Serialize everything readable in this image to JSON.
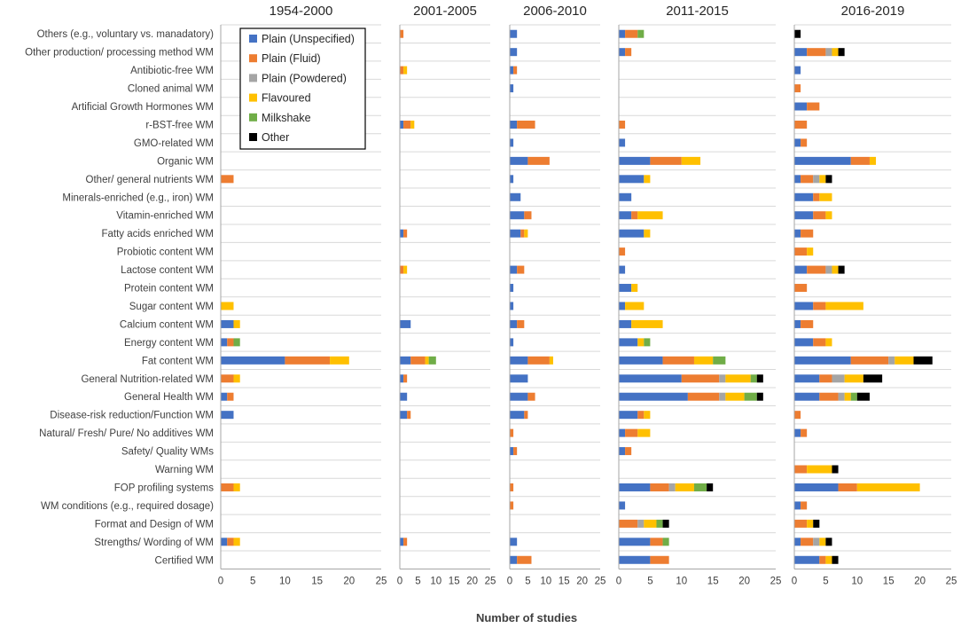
{
  "chart_data": {
    "type": "bar",
    "orientation": "horizontal",
    "stacked": true,
    "xlabel": "Number of studies",
    "xlim": [
      0,
      25
    ],
    "xticks": [
      0,
      5,
      10,
      15,
      20,
      25
    ],
    "legend_position": "top-left",
    "categories": [
      "Others (e.g., voluntary vs. manadatory)",
      "Other production/ processing method WM",
      "Antibiotic-free WM",
      "Cloned animal WM",
      "Artificial Growth Hormones WM",
      "r-BST-free WM",
      "GMO-related WM",
      "Organic WM",
      "Other/ general nutrients WM",
      "Minerals-enriched (e.g., iron) WM",
      "Vitamin-enriched WM",
      "Fatty acids enriched WM",
      "Probiotic content WM",
      "Lactose content WM",
      "Protein content WM",
      "Sugar content WM",
      "Calcium content WM",
      "Energy content WM",
      "Fat content WM",
      "General Nutrition-related WM",
      "General Health WM",
      "Disease-risk reduction/Function WM",
      "Natural/ Fresh/ Pure/ No additives WM",
      "Safety/ Quality WMs",
      "Warning WM",
      "FOP profiling systems",
      "WM conditions (e.g., required dosage)",
      "Format and Design of WM",
      "Strengths/ Wording of WM",
      "Certified WM"
    ],
    "series_names": [
      "Plain (Unspecified)",
      "Plain (Fluid)",
      "Plain (Powdered)",
      "Flavoured",
      "Milkshake",
      "Other"
    ],
    "series_colors": [
      "#4472c4",
      "#ed7d31",
      "#a5a5a5",
      "#ffc000",
      "#70ad47",
      "#000000"
    ],
    "panels": [
      {
        "title": "1954-2000",
        "values": [
          [
            0,
            0,
            0,
            0,
            0,
            0
          ],
          [
            0,
            0,
            0,
            0,
            0,
            0
          ],
          [
            0,
            0,
            0,
            0,
            0,
            0
          ],
          [
            0,
            0,
            0,
            0,
            0,
            0
          ],
          [
            0,
            0,
            0,
            0,
            0,
            0
          ],
          [
            0,
            0,
            0,
            0,
            0,
            0
          ],
          [
            0,
            0,
            0,
            0,
            0,
            0
          ],
          [
            0,
            0,
            0,
            0,
            0,
            0
          ],
          [
            0,
            2,
            0,
            0,
            0,
            0
          ],
          [
            0,
            0,
            0,
            0,
            0,
            0
          ],
          [
            0,
            0,
            0,
            0,
            0,
            0
          ],
          [
            0,
            0,
            0,
            0,
            0,
            0
          ],
          [
            0,
            0,
            0,
            0,
            0,
            0
          ],
          [
            0,
            0,
            0,
            0,
            0,
            0
          ],
          [
            0,
            0,
            0,
            0,
            0,
            0
          ],
          [
            0,
            0,
            0,
            2,
            0,
            0
          ],
          [
            2,
            0,
            0,
            1,
            0,
            0
          ],
          [
            1,
            1,
            0,
            0,
            1,
            0
          ],
          [
            10,
            7,
            0,
            3,
            0,
            0
          ],
          [
            0,
            2,
            0,
            1,
            0,
            0
          ],
          [
            1,
            1,
            0,
            0,
            0,
            0
          ],
          [
            2,
            0,
            0,
            0,
            0,
            0
          ],
          [
            0,
            0,
            0,
            0,
            0,
            0
          ],
          [
            0,
            0,
            0,
            0,
            0,
            0
          ],
          [
            0,
            0,
            0,
            0,
            0,
            0
          ],
          [
            0,
            2,
            0,
            1,
            0,
            0
          ],
          [
            0,
            0,
            0,
            0,
            0,
            0
          ],
          [
            0,
            0,
            0,
            0,
            0,
            0
          ],
          [
            1,
            1,
            0,
            1,
            0,
            0
          ],
          [
            0,
            0,
            0,
            0,
            0,
            0
          ]
        ]
      },
      {
        "title": "2001-2005",
        "values": [
          [
            0,
            1,
            0,
            0,
            0,
            0
          ],
          [
            0,
            0,
            0,
            0,
            0,
            0
          ],
          [
            0,
            1,
            0,
            1,
            0,
            0
          ],
          [
            0,
            0,
            0,
            0,
            0,
            0
          ],
          [
            0,
            0,
            0,
            0,
            0,
            0
          ],
          [
            1,
            2,
            0,
            1,
            0,
            0
          ],
          [
            0,
            0,
            0,
            0,
            0,
            0
          ],
          [
            0,
            0,
            0,
            0,
            0,
            0
          ],
          [
            0,
            0,
            0,
            0,
            0,
            0
          ],
          [
            0,
            0,
            0,
            0,
            0,
            0
          ],
          [
            0,
            0,
            0,
            0,
            0,
            0
          ],
          [
            1,
            1,
            0,
            0,
            0,
            0
          ],
          [
            0,
            0,
            0,
            0,
            0,
            0
          ],
          [
            0,
            1,
            0,
            1,
            0,
            0
          ],
          [
            0,
            0,
            0,
            0,
            0,
            0
          ],
          [
            0,
            0,
            0,
            0,
            0,
            0
          ],
          [
            3,
            0,
            0,
            0,
            0,
            0
          ],
          [
            0,
            0,
            0,
            0,
            0,
            0
          ],
          [
            3,
            4,
            0,
            1,
            2,
            0
          ],
          [
            1,
            1,
            0,
            0,
            0,
            0
          ],
          [
            2,
            0,
            0,
            0,
            0,
            0
          ],
          [
            2,
            1,
            0,
            0,
            0,
            0
          ],
          [
            0,
            0,
            0,
            0,
            0,
            0
          ],
          [
            0,
            0,
            0,
            0,
            0,
            0
          ],
          [
            0,
            0,
            0,
            0,
            0,
            0
          ],
          [
            0,
            0,
            0,
            0,
            0,
            0
          ],
          [
            0,
            0,
            0,
            0,
            0,
            0
          ],
          [
            0,
            0,
            0,
            0,
            0,
            0
          ],
          [
            1,
            1,
            0,
            0,
            0,
            0
          ],
          [
            0,
            0,
            0,
            0,
            0,
            0
          ]
        ]
      },
      {
        "title": "2006-2010",
        "values": [
          [
            2,
            0,
            0,
            0,
            0,
            0
          ],
          [
            2,
            0,
            0,
            0,
            0,
            0
          ],
          [
            1,
            1,
            0,
            0,
            0,
            0
          ],
          [
            1,
            0,
            0,
            0,
            0,
            0
          ],
          [
            0,
            0,
            0,
            0,
            0,
            0
          ],
          [
            2,
            5,
            0,
            0,
            0,
            0
          ],
          [
            1,
            0,
            0,
            0,
            0,
            0
          ],
          [
            5,
            6,
            0,
            0,
            0,
            0
          ],
          [
            1,
            0,
            0,
            0,
            0,
            0
          ],
          [
            3,
            0,
            0,
            0,
            0,
            0
          ],
          [
            4,
            2,
            0,
            0,
            0,
            0
          ],
          [
            3,
            1,
            0,
            1,
            0,
            0
          ],
          [
            0,
            0,
            0,
            0,
            0,
            0
          ],
          [
            2,
            2,
            0,
            0,
            0,
            0
          ],
          [
            1,
            0,
            0,
            0,
            0,
            0
          ],
          [
            1,
            0,
            0,
            0,
            0,
            0
          ],
          [
            2,
            2,
            0,
            0,
            0,
            0
          ],
          [
            1,
            0,
            0,
            0,
            0,
            0
          ],
          [
            5,
            6,
            0,
            1,
            0,
            0
          ],
          [
            5,
            0,
            0,
            0,
            0,
            0
          ],
          [
            5,
            2,
            0,
            0,
            0,
            0
          ],
          [
            4,
            1,
            0,
            0,
            0,
            0
          ],
          [
            0,
            1,
            0,
            0,
            0,
            0
          ],
          [
            1,
            1,
            0,
            0,
            0,
            0
          ],
          [
            0,
            0,
            0,
            0,
            0,
            0
          ],
          [
            0,
            1,
            0,
            0,
            0,
            0
          ],
          [
            0,
            1,
            0,
            0,
            0,
            0
          ],
          [
            0,
            0,
            0,
            0,
            0,
            0
          ],
          [
            2,
            0,
            0,
            0,
            0,
            0
          ],
          [
            2,
            4,
            0,
            0,
            0,
            0
          ]
        ]
      },
      {
        "title": "2011-2015",
        "values": [
          [
            1,
            2,
            0,
            0,
            1,
            0
          ],
          [
            1,
            1,
            0,
            0,
            0,
            0
          ],
          [
            0,
            0,
            0,
            0,
            0,
            0
          ],
          [
            0,
            0,
            0,
            0,
            0,
            0
          ],
          [
            0,
            0,
            0,
            0,
            0,
            0
          ],
          [
            0,
            1,
            0,
            0,
            0,
            0
          ],
          [
            1,
            0,
            0,
            0,
            0,
            0
          ],
          [
            5,
            5,
            0,
            3,
            0,
            0
          ],
          [
            4,
            0,
            0,
            1,
            0,
            0
          ],
          [
            2,
            0,
            0,
            0,
            0,
            0
          ],
          [
            2,
            1,
            0,
            4,
            0,
            0
          ],
          [
            4,
            0,
            0,
            1,
            0,
            0
          ],
          [
            0,
            1,
            0,
            0,
            0,
            0
          ],
          [
            1,
            0,
            0,
            0,
            0,
            0
          ],
          [
            2,
            0,
            0,
            1,
            0,
            0
          ],
          [
            1,
            0,
            0,
            3,
            0,
            0
          ],
          [
            2,
            0,
            0,
            5,
            0,
            0
          ],
          [
            3,
            0,
            0,
            1,
            1,
            0
          ],
          [
            7,
            5,
            0,
            3,
            2,
            0
          ],
          [
            10,
            6,
            1,
            4,
            1,
            1
          ],
          [
            11,
            5,
            1,
            3,
            2,
            1
          ],
          [
            3,
            1,
            0,
            1,
            0,
            0
          ],
          [
            1,
            2,
            0,
            2,
            0,
            0
          ],
          [
            1,
            1,
            0,
            0,
            0,
            0
          ],
          [
            0,
            0,
            0,
            0,
            0,
            0
          ],
          [
            5,
            3,
            1,
            3,
            2,
            1
          ],
          [
            1,
            0,
            0,
            0,
            0,
            0
          ],
          [
            0,
            3,
            1,
            2,
            1,
            1
          ],
          [
            5,
            2,
            0,
            0,
            1,
            0
          ],
          [
            5,
            3,
            0,
            0,
            0,
            0
          ]
        ]
      },
      {
        "title": "2016-2019",
        "values": [
          [
            0,
            0,
            0,
            0,
            0,
            1
          ],
          [
            2,
            3,
            1,
            1,
            0,
            1
          ],
          [
            1,
            0,
            0,
            0,
            0,
            0
          ],
          [
            0,
            1,
            0,
            0,
            0,
            0
          ],
          [
            2,
            2,
            0,
            0,
            0,
            0
          ],
          [
            0,
            2,
            0,
            0,
            0,
            0
          ],
          [
            1,
            1,
            0,
            0,
            0,
            0
          ],
          [
            9,
            3,
            0,
            1,
            0,
            0
          ],
          [
            1,
            2,
            1,
            1,
            0,
            1
          ],
          [
            3,
            1,
            0,
            2,
            0,
            0
          ],
          [
            3,
            2,
            0,
            1,
            0,
            0
          ],
          [
            1,
            2,
            0,
            0,
            0,
            0
          ],
          [
            0,
            2,
            0,
            1,
            0,
            0
          ],
          [
            2,
            3,
            1,
            1,
            0,
            1
          ],
          [
            0,
            2,
            0,
            0,
            0,
            0
          ],
          [
            3,
            2,
            0,
            6,
            0,
            0
          ],
          [
            1,
            2,
            0,
            0,
            0,
            0
          ],
          [
            3,
            2,
            0,
            1,
            0,
            0
          ],
          [
            9,
            6,
            1,
            3,
            0,
            3
          ],
          [
            4,
            2,
            2,
            3,
            0,
            3
          ],
          [
            4,
            3,
            1,
            1,
            1,
            2
          ],
          [
            0,
            1,
            0,
            0,
            0,
            0
          ],
          [
            1,
            1,
            0,
            0,
            0,
            0
          ],
          [
            0,
            0,
            0,
            0,
            0,
            0
          ],
          [
            0,
            2,
            0,
            4,
            0,
            1
          ],
          [
            7,
            3,
            0,
            10,
            0,
            0
          ],
          [
            1,
            1,
            0,
            0,
            0,
            0
          ],
          [
            0,
            2,
            0,
            1,
            0,
            1
          ],
          [
            1,
            2,
            1,
            1,
            0,
            1
          ],
          [
            4,
            1,
            0,
            1,
            0,
            1
          ]
        ]
      }
    ]
  }
}
